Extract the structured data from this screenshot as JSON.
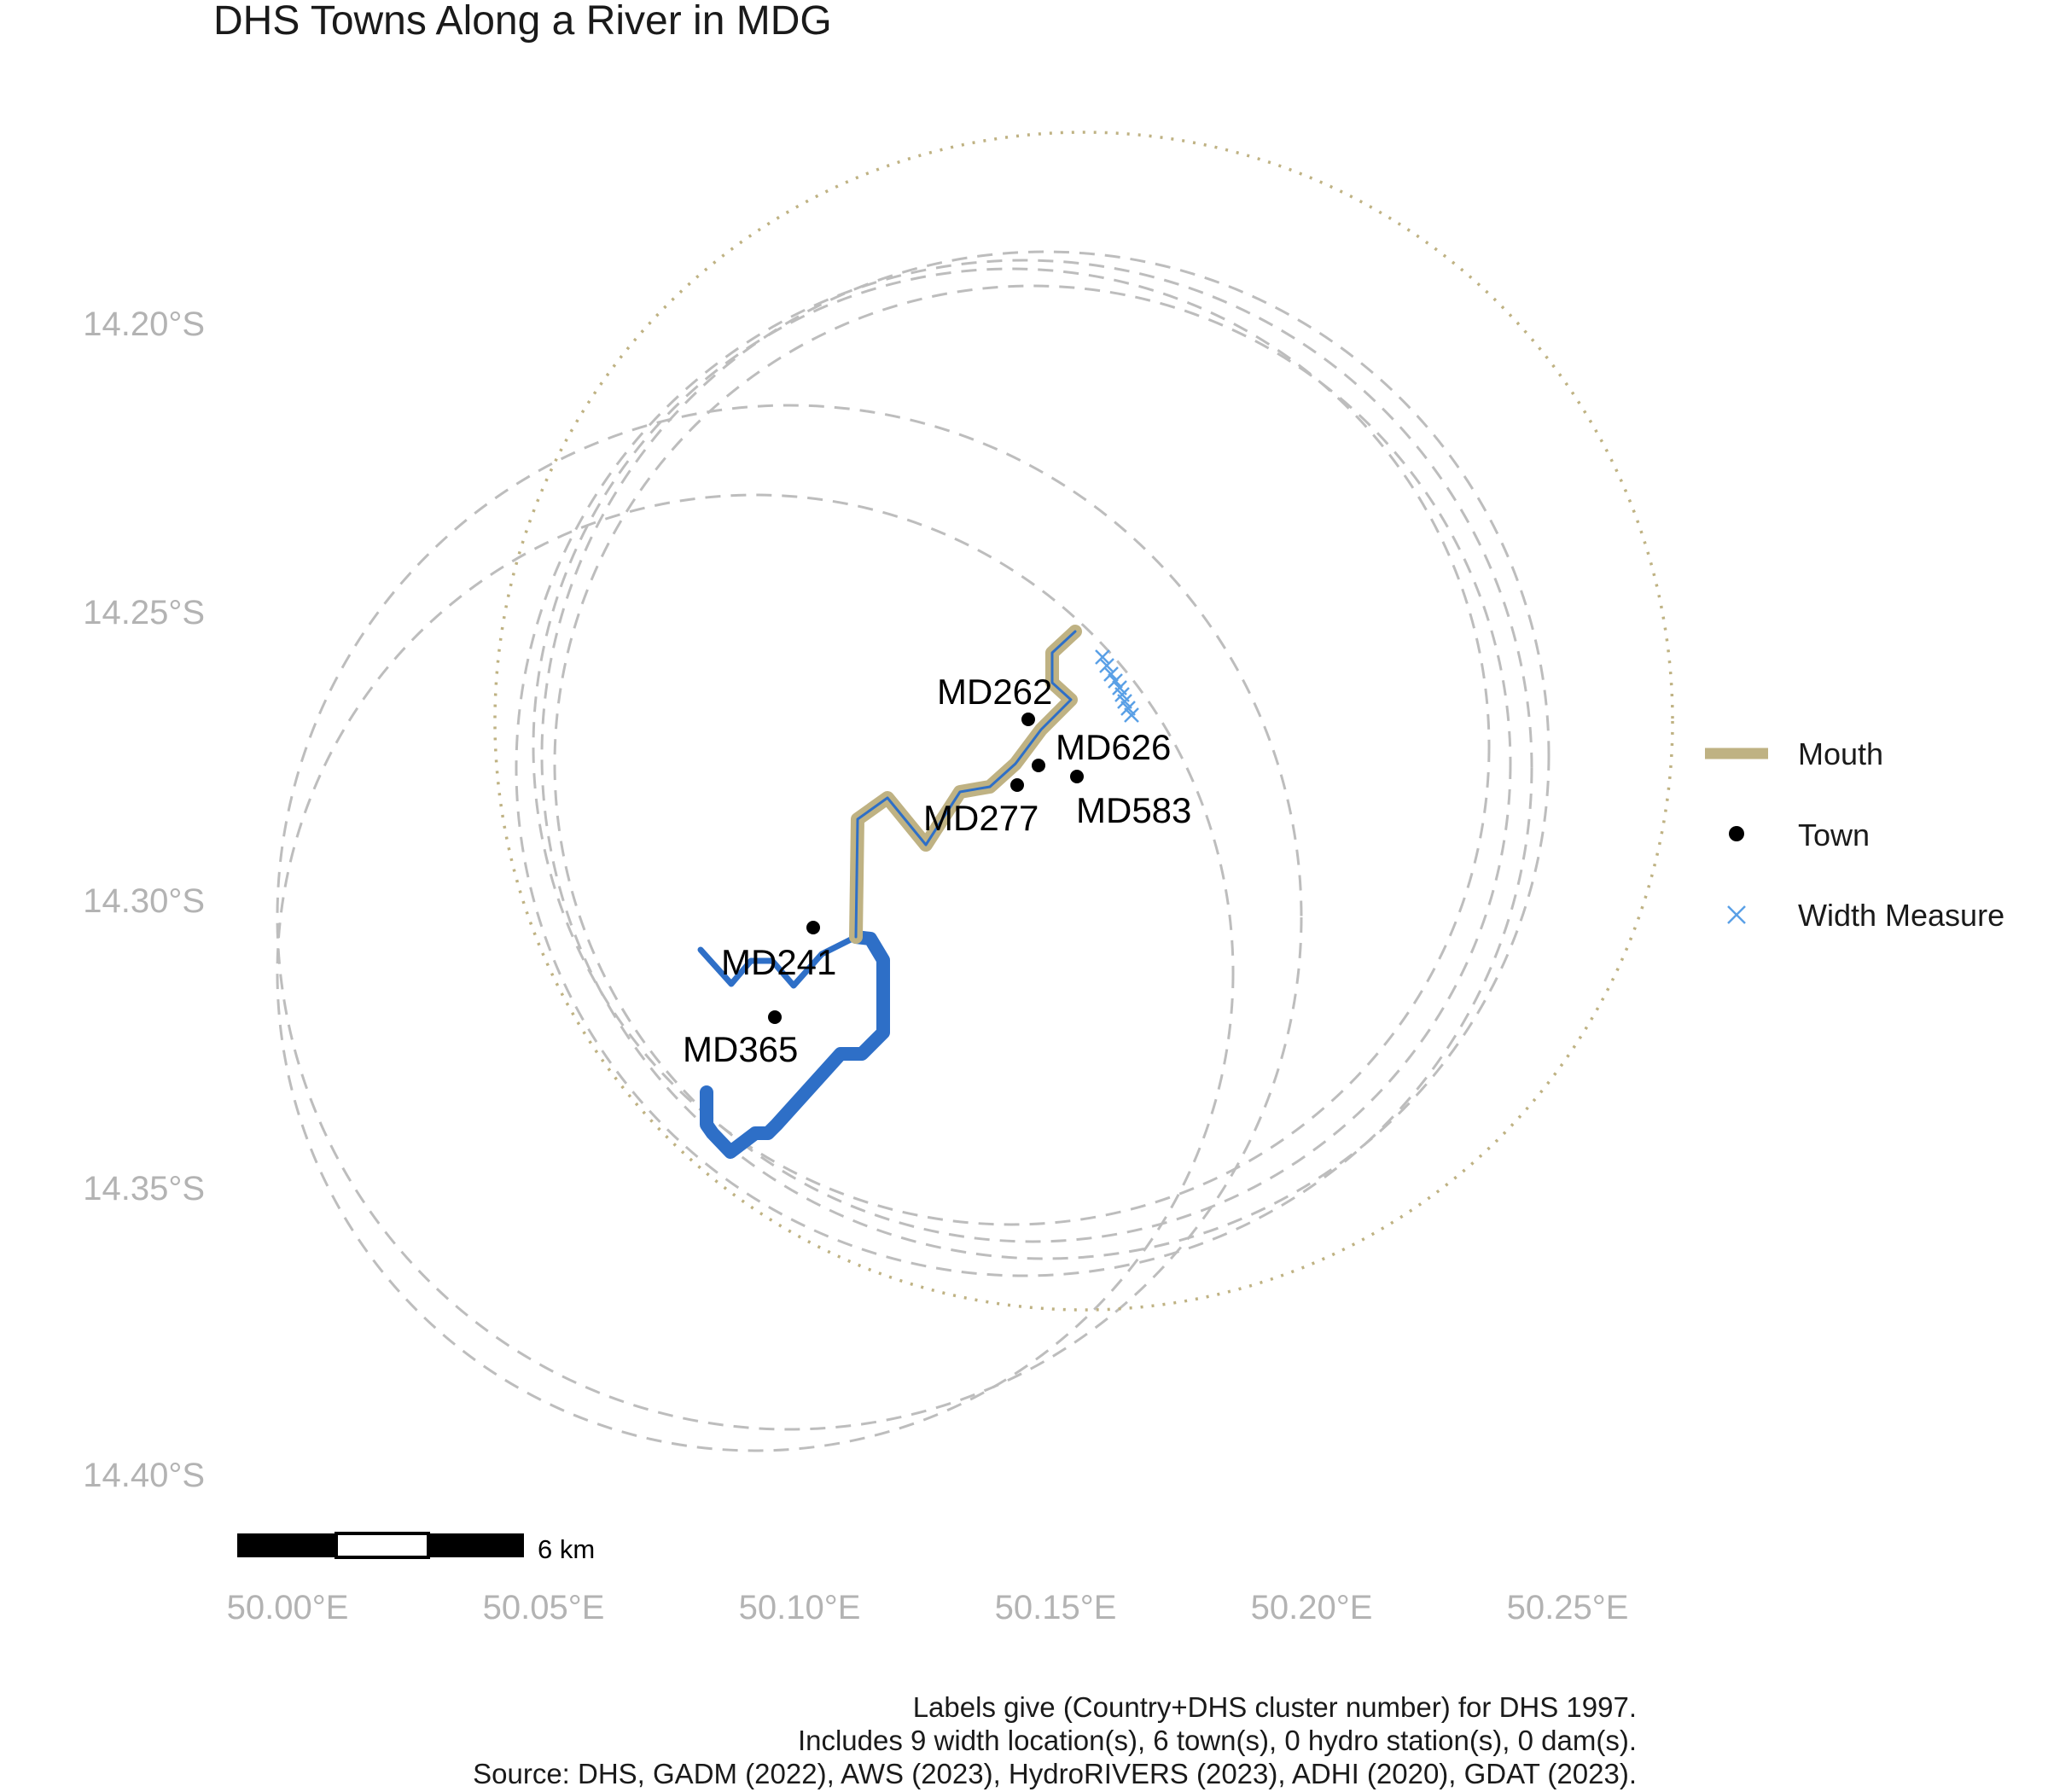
{
  "title": "DHS Towns Along a River in MDG",
  "colors": {
    "mouth": "#bfb283",
    "river": "#2e6fc7",
    "town": "#000000",
    "width_measure": "#5aa0e6",
    "buffer": "#bdbdbd",
    "mouth_buffer": "#bfb283",
    "axis_text": "#b3b3b3"
  },
  "axes": {
    "x_ticks": [
      "50.00°E",
      "50.05°E",
      "50.10°E",
      "50.15°E",
      "50.20°E",
      "50.25°E"
    ],
    "y_ticks": [
      "14.20°S",
      "14.25°S",
      "14.30°S",
      "14.35°S",
      "14.40°S"
    ]
  },
  "towns": [
    {
      "id": "MD262",
      "lon": 50.145,
      "lat": -14.27
    },
    {
      "id": "MD626",
      "lon": 50.147,
      "lat": -14.279
    },
    {
      "id": "MD277",
      "lon": 50.143,
      "lat": -14.282
    },
    {
      "id": "MD583",
      "lon": 50.155,
      "lat": -14.281
    },
    {
      "id": "MD241",
      "lon": 50.103,
      "lat": -14.305
    },
    {
      "id": "MD365",
      "lon": 50.095,
      "lat": -14.321
    }
  ],
  "legend": {
    "items": [
      {
        "label": "Mouth",
        "icon": "thick-line"
      },
      {
        "label": "Town",
        "icon": "dot"
      },
      {
        "label": "Width Measure",
        "icon": "cross"
      }
    ]
  },
  "scale_bar": {
    "label": "6 km"
  },
  "caption": {
    "lines": [
      "Labels give (Country+DHS cluster number) for DHS 1997.",
      "Includes 9 width location(s), 6 town(s), 0 hydro station(s), 0 dam(s).",
      "Source: DHS, GADM (2022), AWS (2023), HydroRIVERS (2023), ADHI (2020), GDAT (2023)."
    ]
  }
}
